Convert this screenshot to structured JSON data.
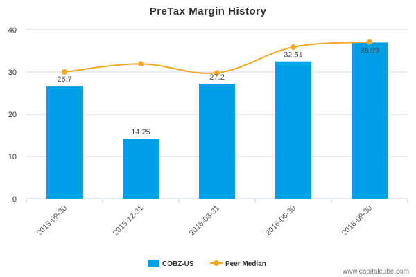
{
  "chart_data": {
    "type": "bar",
    "title": "PreTax Margin History",
    "categories": [
      "2015-09-30",
      "2015-12-31",
      "2016-03-31",
      "2016-06-30",
      "2016-09-30"
    ],
    "series": [
      {
        "name": "COBZ-US",
        "type": "bar",
        "color": "#00a0e9",
        "values": [
          26.7,
          14.25,
          27.2,
          32.51,
          36.99
        ]
      },
      {
        "name": "Peer Median",
        "type": "line",
        "color": "#f5a623",
        "values": [
          30.0,
          31.9,
          29.8,
          35.9,
          37.1
        ]
      }
    ],
    "data_labels": [
      "26.7",
      "14.25",
      "27.2",
      "32.51",
      "36.99"
    ],
    "yticks": [
      "0",
      "10",
      "20",
      "30",
      "40"
    ],
    "ylim": [
      0,
      40
    ],
    "grid": true,
    "legend_position": "bottom-center"
  },
  "footer": {
    "source": "www.capitalcube.com"
  }
}
